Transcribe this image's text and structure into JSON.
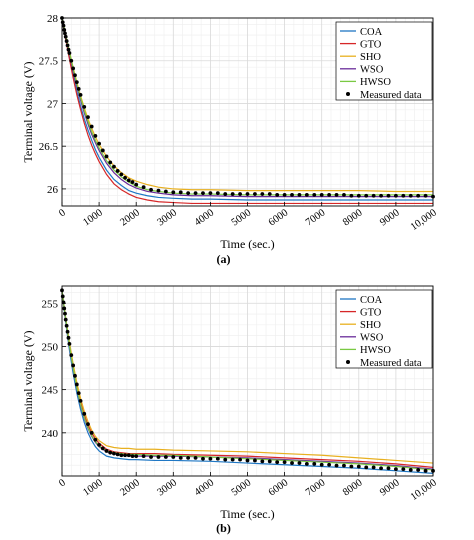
{
  "chart_data": [
    {
      "panel_label": "(a)",
      "type": "line",
      "xlabel": "Time (sec.)",
      "ylabel": "Terminal voltage (V)",
      "xlim": [
        0,
        10000
      ],
      "ylim": [
        25.8,
        28.0
      ],
      "xticks": [
        0,
        1000,
        2000,
        3000,
        4000,
        5000,
        6000,
        7000,
        8000,
        9000,
        10000
      ],
      "xtick_labels": [
        "0",
        "1000",
        "2000",
        "3000",
        "4000",
        "5000",
        "6000",
        "7000",
        "8000",
        "9000",
        "10,000"
      ],
      "yticks": [
        26,
        26.5,
        27,
        27.5,
        28
      ],
      "ytick_labels": [
        "26",
        "26.5",
        "27",
        "27.5",
        "28"
      ],
      "grid": true,
      "legend_position": "top-right",
      "x": [
        0,
        50,
        100,
        200,
        300,
        400,
        500,
        600,
        700,
        800,
        900,
        1000,
        1200,
        1400,
        1600,
        1800,
        2000,
        2300,
        2600,
        3000,
        3500,
        4000,
        5000,
        6000,
        7000,
        8000,
        9000,
        10000
      ],
      "series": [
        {
          "name": "COA",
          "color": "#1f77c4",
          "y": [
            28.0,
            27.88,
            27.76,
            27.54,
            27.33,
            27.14,
            26.97,
            26.82,
            26.69,
            26.57,
            26.46,
            26.37,
            26.22,
            26.11,
            26.04,
            25.98,
            25.95,
            25.92,
            25.9,
            25.89,
            25.88,
            25.88,
            25.87,
            25.87,
            25.87,
            25.87,
            25.87,
            25.87
          ]
        },
        {
          "name": "GTO",
          "color": "#d62728",
          "y": [
            28.0,
            27.88,
            27.75,
            27.52,
            27.3,
            27.1,
            26.93,
            26.77,
            26.63,
            26.51,
            26.41,
            26.32,
            26.17,
            26.06,
            25.99,
            25.94,
            25.9,
            25.87,
            25.85,
            25.84,
            25.83,
            25.83,
            25.83,
            25.83,
            25.83,
            25.83,
            25.83,
            25.83
          ]
        },
        {
          "name": "SHO",
          "color": "#e8b020",
          "y": [
            28.0,
            27.9,
            27.8,
            27.61,
            27.42,
            27.25,
            27.09,
            26.95,
            26.82,
            26.71,
            26.61,
            26.52,
            26.38,
            26.27,
            26.19,
            26.13,
            26.09,
            26.05,
            26.02,
            26.0,
            25.99,
            25.99,
            25.98,
            25.98,
            25.98,
            25.98,
            25.97,
            25.97
          ]
        },
        {
          "name": "WSO",
          "color": "#6a2c9a",
          "y": [
            28.0,
            27.89,
            27.78,
            27.58,
            27.38,
            27.2,
            27.04,
            26.89,
            26.76,
            26.64,
            26.54,
            26.45,
            26.3,
            26.19,
            26.11,
            26.05,
            26.01,
            25.97,
            25.95,
            25.93,
            25.92,
            25.92,
            25.91,
            25.91,
            25.91,
            25.91,
            25.91,
            25.91
          ]
        },
        {
          "name": "HWSO",
          "color": "#7ac943",
          "y": [
            28.0,
            27.9,
            27.79,
            27.6,
            27.41,
            27.23,
            27.07,
            26.92,
            26.79,
            26.67,
            26.57,
            26.48,
            26.33,
            26.22,
            26.14,
            26.08,
            26.03,
            25.99,
            25.97,
            25.95,
            25.94,
            25.94,
            25.93,
            25.93,
            25.93,
            25.93,
            25.93,
            25.93
          ]
        }
      ],
      "measured": {
        "name": "Measured data",
        "x": [
          0,
          20,
          40,
          60,
          80,
          100,
          125,
          150,
          175,
          200,
          250,
          300,
          350,
          400,
          450,
          500,
          600,
          700,
          800,
          900,
          1000,
          1100,
          1200,
          1300,
          1400,
          1500,
          1600,
          1700,
          1800,
          1900,
          2000,
          2200,
          2400,
          2600,
          2800,
          3000,
          3200,
          3400,
          3600,
          3800,
          4000,
          4200,
          4400,
          4600,
          4800,
          5000,
          5200,
          5400,
          5600,
          5800,
          6000,
          6200,
          6400,
          6600,
          6800,
          7000,
          7200,
          7400,
          7600,
          7800,
          8000,
          8200,
          8400,
          8600,
          8800,
          9000,
          9200,
          9400,
          9600,
          9800,
          10000
        ],
        "y": [
          28.0,
          27.95,
          27.91,
          27.86,
          27.82,
          27.78,
          27.73,
          27.68,
          27.63,
          27.59,
          27.5,
          27.41,
          27.33,
          27.25,
          27.17,
          27.1,
          26.96,
          26.84,
          26.73,
          26.62,
          26.53,
          26.45,
          26.38,
          26.31,
          26.26,
          26.21,
          26.17,
          26.13,
          26.1,
          26.08,
          26.05,
          26.02,
          25.99,
          25.98,
          25.97,
          25.96,
          25.96,
          25.95,
          25.95,
          25.95,
          25.95,
          25.95,
          25.94,
          25.94,
          25.94,
          25.94,
          25.94,
          25.94,
          25.94,
          25.93,
          25.93,
          25.93,
          25.93,
          25.93,
          25.93,
          25.93,
          25.93,
          25.93,
          25.93,
          25.92,
          25.92,
          25.92,
          25.92,
          25.92,
          25.92,
          25.92,
          25.92,
          25.92,
          25.92,
          25.92,
          25.91
        ]
      }
    },
    {
      "panel_label": "(b)",
      "type": "line",
      "xlabel": "Time (sec.)",
      "ylabel": "Terminal voltage (V)",
      "xlim": [
        0,
        10000
      ],
      "ylim": [
        235,
        257
      ],
      "xticks": [
        0,
        1000,
        2000,
        3000,
        4000,
        5000,
        6000,
        7000,
        8000,
        9000,
        10000
      ],
      "xtick_labels": [
        "0",
        "1000",
        "2000",
        "3000",
        "4000",
        "5000",
        "6000",
        "7000",
        "8000",
        "9000",
        "10,000"
      ],
      "yticks": [
        240,
        245,
        250,
        255
      ],
      "ytick_labels": [
        "240",
        "245",
        "250",
        "255"
      ],
      "grid": true,
      "legend_position": "top-right",
      "x": [
        0,
        50,
        100,
        200,
        300,
        400,
        500,
        600,
        700,
        800,
        900,
        1000,
        1200,
        1400,
        1600,
        1800,
        2000,
        2500,
        3000,
        4000,
        5000,
        6000,
        7000,
        8000,
        9000,
        10000
      ],
      "series": [
        {
          "name": "COA",
          "color": "#1f77c4",
          "y": [
            256.5,
            254.6,
            252.8,
            249.6,
            246.9,
            244.6,
            242.7,
            241.2,
            240.0,
            239.1,
            238.4,
            237.9,
            237.3,
            237.1,
            237.0,
            236.9,
            236.9,
            236.8,
            236.8,
            236.7,
            236.5,
            236.3,
            236.1,
            235.9,
            235.6,
            235.3
          ]
        },
        {
          "name": "GTO",
          "color": "#d62728",
          "y": [
            256.5,
            254.8,
            253.1,
            250.2,
            247.6,
            245.4,
            243.6,
            242.1,
            240.9,
            240.0,
            239.3,
            238.8,
            238.1,
            237.8,
            237.7,
            237.6,
            237.6,
            237.6,
            237.5,
            237.4,
            237.3,
            237.1,
            236.9,
            236.7,
            236.4,
            236.0
          ]
        },
        {
          "name": "SHO",
          "color": "#e8b020",
          "y": [
            256.5,
            254.9,
            253.3,
            250.5,
            248.0,
            245.8,
            244.0,
            242.5,
            241.3,
            240.3,
            239.6,
            239.1,
            238.5,
            238.3,
            238.2,
            238.2,
            238.1,
            238.1,
            238.0,
            237.9,
            237.8,
            237.6,
            237.4,
            237.1,
            236.8,
            236.5
          ]
        },
        {
          "name": "WSO",
          "color": "#6a2c9a",
          "y": [
            256.5,
            254.8,
            253.0,
            250.0,
            247.4,
            245.1,
            243.2,
            241.7,
            240.5,
            239.6,
            238.9,
            238.4,
            237.8,
            237.6,
            237.4,
            237.4,
            237.3,
            237.3,
            237.3,
            237.2,
            237.1,
            236.9,
            236.7,
            236.5,
            236.2,
            235.8
          ]
        },
        {
          "name": "HWSO",
          "color": "#7ac943",
          "y": [
            256.5,
            254.8,
            253.1,
            250.1,
            247.5,
            245.2,
            243.3,
            241.8,
            240.6,
            239.7,
            239.0,
            238.5,
            237.9,
            237.7,
            237.6,
            237.5,
            237.5,
            237.4,
            237.4,
            237.2,
            237.0,
            236.8,
            236.6,
            236.4,
            236.1,
            235.7
          ]
        }
      ],
      "measured": {
        "name": "Measured data",
        "x": [
          0,
          20,
          40,
          60,
          80,
          100,
          125,
          150,
          175,
          200,
          250,
          300,
          350,
          400,
          450,
          500,
          600,
          700,
          800,
          900,
          1000,
          1100,
          1200,
          1300,
          1400,
          1500,
          1600,
          1700,
          1800,
          1900,
          2000,
          2200,
          2400,
          2600,
          2800,
          3000,
          3200,
          3400,
          3600,
          3800,
          4000,
          4200,
          4400,
          4600,
          4800,
          5000,
          5200,
          5400,
          5600,
          5800,
          6000,
          6200,
          6400,
          6600,
          6800,
          7000,
          7200,
          7400,
          7600,
          7800,
          8000,
          8200,
          8400,
          8600,
          8800,
          9000,
          9200,
          9400,
          9600,
          9800,
          10000
        ],
        "y": [
          256.5,
          255.8,
          255.1,
          254.4,
          253.8,
          253.1,
          252.4,
          251.7,
          251.0,
          250.3,
          249.0,
          247.8,
          246.6,
          245.6,
          244.6,
          243.7,
          242.2,
          241.0,
          240.0,
          239.2,
          238.6,
          238.2,
          237.9,
          237.7,
          237.6,
          237.5,
          237.4,
          237.4,
          237.4,
          237.3,
          237.3,
          237.3,
          237.2,
          237.2,
          237.2,
          237.2,
          237.1,
          237.1,
          237.1,
          237.0,
          237.0,
          237.0,
          236.9,
          236.9,
          236.9,
          236.8,
          236.8,
          236.7,
          236.7,
          236.6,
          236.6,
          236.5,
          236.5,
          236.4,
          236.4,
          236.3,
          236.3,
          236.2,
          236.2,
          236.1,
          236.1,
          236.0,
          236.0,
          235.9,
          235.9,
          235.8,
          235.8,
          235.7,
          235.7,
          235.6,
          235.6
        ]
      }
    }
  ]
}
